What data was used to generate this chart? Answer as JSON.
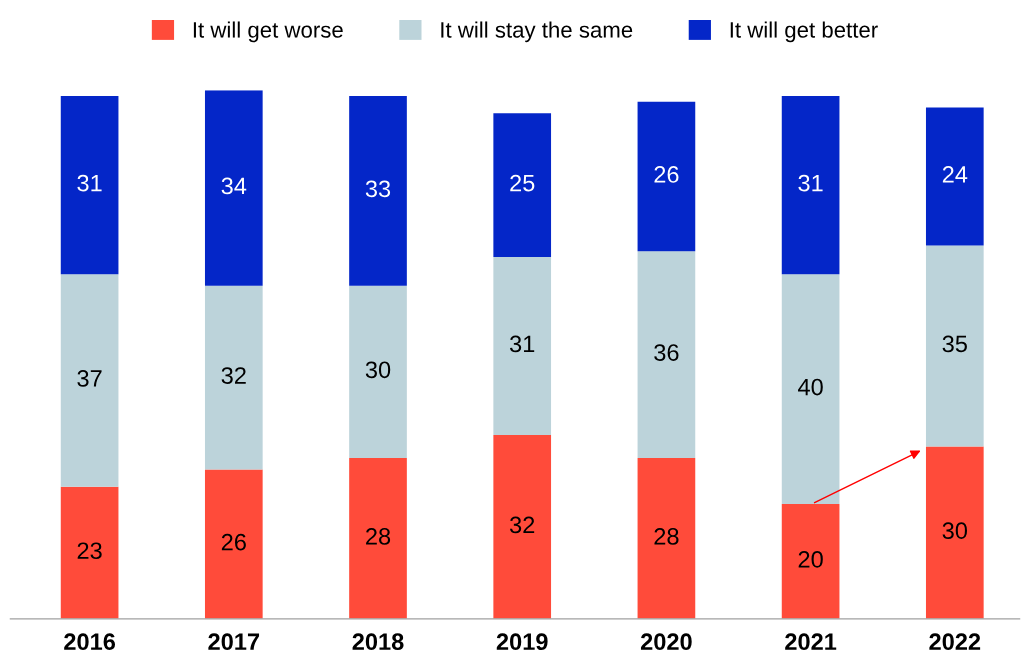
{
  "chart_data": {
    "type": "bar",
    "stacked": true,
    "data_labels": true,
    "legend": "top",
    "grid": false,
    "categories": [
      "2016",
      "2017",
      "2018",
      "2019",
      "2020",
      "2021",
      "2022"
    ],
    "series": [
      {
        "name": "It will get worse",
        "color": "#ff4b3a",
        "values": [
          23,
          26,
          28,
          32,
          28,
          20,
          30
        ]
      },
      {
        "name": "It will stay the same",
        "color": "#bcd3da",
        "values": [
          37,
          32,
          30,
          31,
          36,
          40,
          35
        ]
      },
      {
        "name": "It will get better",
        "color": "#0426c8",
        "values": [
          31,
          34,
          33,
          25,
          26,
          31,
          24
        ]
      }
    ]
  }
}
